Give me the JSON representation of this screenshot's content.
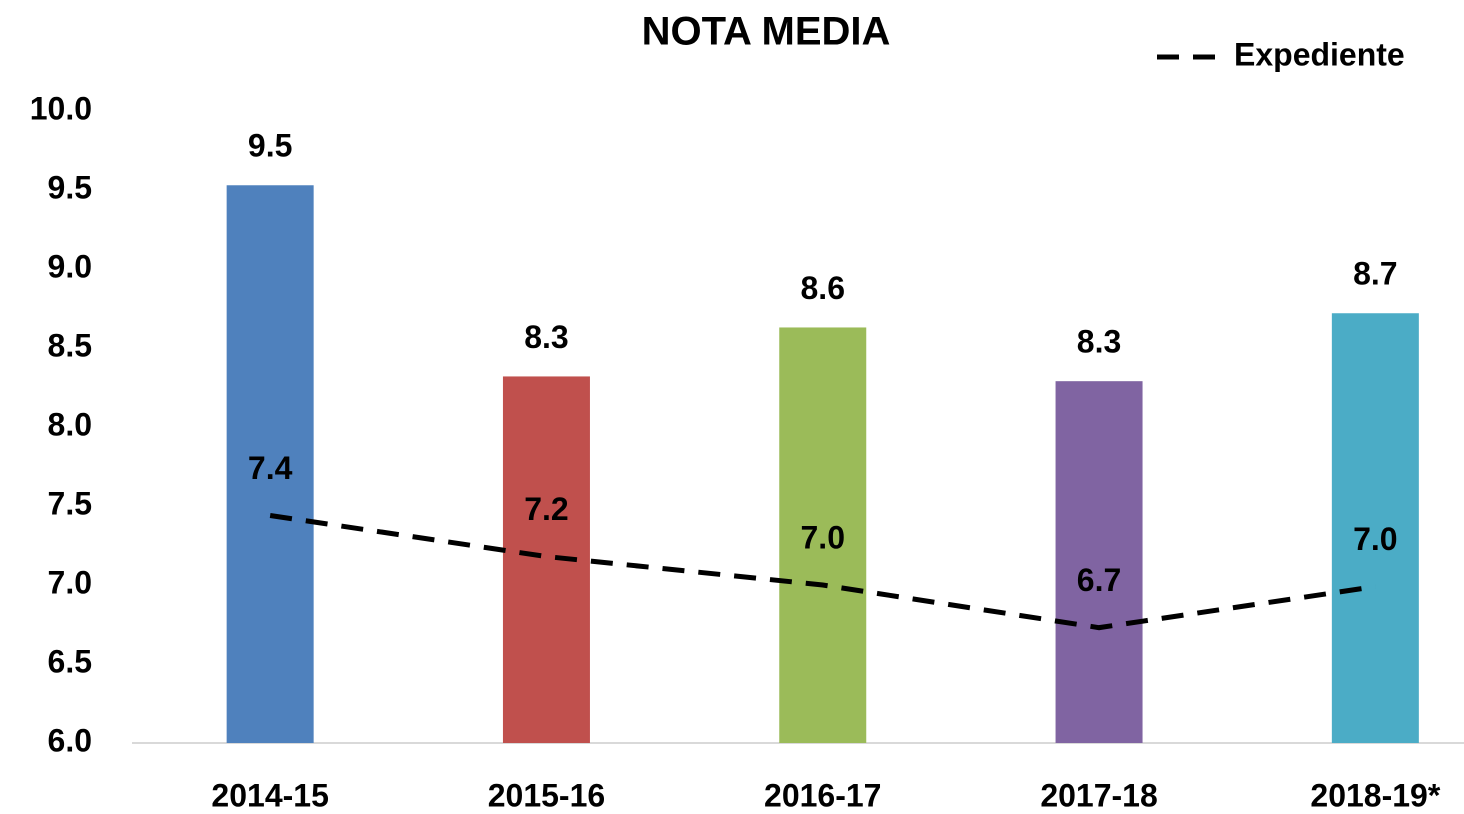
{
  "chart_data": {
    "type": "bar",
    "title": "NOTA MEDIA",
    "categories": [
      "2014-15",
      "2015-16",
      "2016-17",
      "2017-18",
      "2018-19*"
    ],
    "values": [
      9.53,
      8.32,
      8.63,
      8.29,
      8.72
    ],
    "value_labels": [
      "9.5",
      "8.3",
      "8.6",
      "8.3",
      "8.7"
    ],
    "colors": [
      "#4f81bd",
      "#c0504d",
      "#9bbb59",
      "#8064a2",
      "#4bacc6"
    ],
    "series": [
      {
        "name": "Expediente",
        "color": "#000000",
        "line_style": "dashed",
        "values": [
          7.44,
          7.18,
          7.0,
          6.73,
          6.99
        ],
        "value_labels": [
          "7.4",
          "7.2",
          "7.0",
          "6.7",
          "7.0"
        ]
      }
    ],
    "ylim": [
      6,
      10
    ],
    "yticks": [
      {
        "value": 6,
        "label": "6.0"
      },
      6.5,
      {
        "value": 7,
        "label": "7.0"
      },
      7.5,
      {
        "value": 8,
        "label": "8.0"
      },
      8.5,
      {
        "value": 9,
        "label": "9.0"
      },
      9.5,
      {
        "value": 10,
        "label": "10.0"
      }
    ],
    "grid": false,
    "legend": "top-right"
  }
}
